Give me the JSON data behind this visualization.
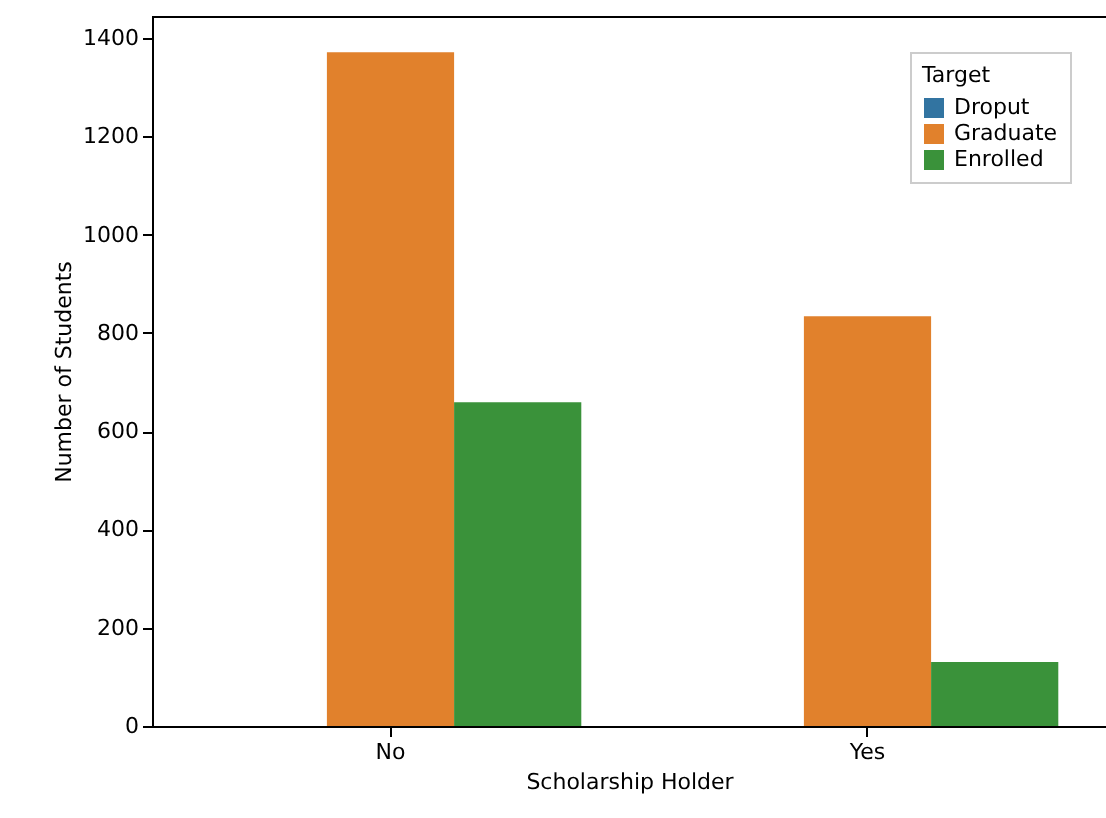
{
  "chart_data": {
    "type": "bar",
    "xlabel": "Scholarship Holder",
    "ylabel": "Number of Students",
    "legend_title": "Target",
    "legend": "top right",
    "grid": false,
    "categories": [
      "No",
      "Yes"
    ],
    "ylim": [
      0,
      1445
    ],
    "yticks": [
      0,
      200,
      400,
      600,
      800,
      1000,
      1200,
      1400
    ],
    "series": [
      {
        "name": "Droput",
        "color": "#3274a1",
        "values": [
          null,
          null
        ]
      },
      {
        "name": "Graduate",
        "color": "#e1812c",
        "values": [
          1371,
          834
        ]
      },
      {
        "name": "Enrolled",
        "color": "#3a923a",
        "values": [
          659,
          130
        ]
      }
    ]
  }
}
